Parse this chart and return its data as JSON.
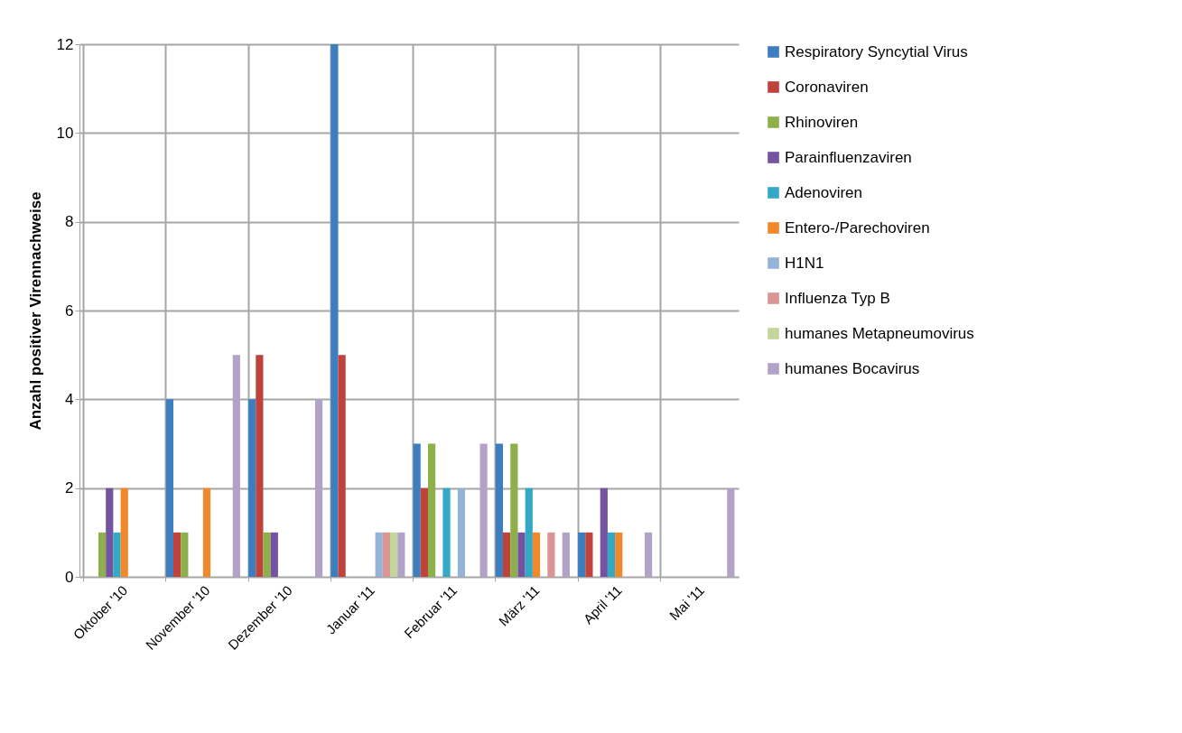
{
  "chart_data": {
    "type": "bar",
    "ylabel": "Anzahl positiver Virennachweise",
    "categories": [
      "Oktober '10",
      "November '10",
      "Dezember '10",
      "Januar '11",
      "Februar '11",
      "März '11",
      "April '11",
      "Mai '11"
    ],
    "ylim": [
      0,
      12
    ],
    "yticks": [
      0,
      2,
      4,
      6,
      8,
      10,
      12
    ],
    "grid": true,
    "legend": "right",
    "series": [
      {
        "name": "Respiratory Syncytial Virus",
        "color": "#3d7ebf",
        "values": [
          0,
          4,
          4,
          12,
          3,
          3,
          1,
          0
        ]
      },
      {
        "name": "Coronaviren",
        "color": "#c0433b",
        "values": [
          0,
          1,
          5,
          5,
          2,
          1,
          1,
          0
        ]
      },
      {
        "name": "Rhinoviren",
        "color": "#8db04a",
        "values": [
          1,
          1,
          1,
          0,
          3,
          3,
          0,
          0
        ]
      },
      {
        "name": "Parainfluenzaviren",
        "color": "#7453a0",
        "values": [
          2,
          0,
          1,
          0,
          0,
          1,
          2,
          0
        ]
      },
      {
        "name": "Adenoviren",
        "color": "#33a9c5",
        "values": [
          1,
          0,
          0,
          0,
          2,
          2,
          1,
          0
        ]
      },
      {
        "name": "Entero-/Parechoviren",
        "color": "#f0892c",
        "values": [
          2,
          2,
          0,
          0,
          0,
          1,
          1,
          0
        ]
      },
      {
        "name": "H1N1",
        "color": "#95b3d9",
        "values": [
          0,
          0,
          0,
          1,
          2,
          0,
          0,
          0
        ]
      },
      {
        "name": "Influenza Typ B",
        "color": "#d99694",
        "values": [
          0,
          0,
          0,
          1,
          0,
          1,
          0,
          0
        ]
      },
      {
        "name": "humanes Metapneumovirus",
        "color": "#c3d69b",
        "values": [
          0,
          0,
          0,
          1,
          0,
          0,
          0,
          0
        ]
      },
      {
        "name": "humanes Bocavirus",
        "color": "#b3a2c7",
        "values": [
          0,
          5,
          4,
          1,
          3,
          1,
          1,
          2
        ]
      }
    ]
  }
}
